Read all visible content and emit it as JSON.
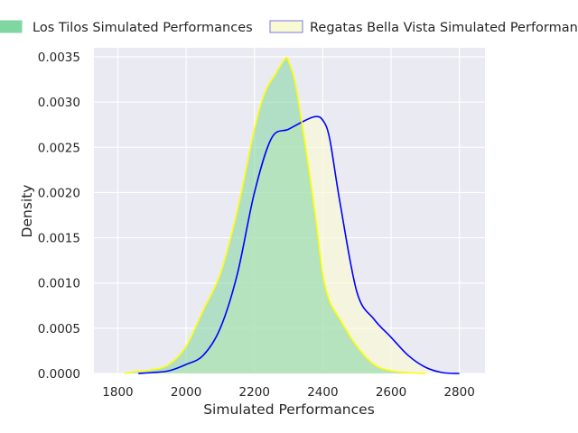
{
  "chart_data": {
    "type": "area",
    "title": "",
    "xlabel": "Simulated Performances",
    "ylabel": "Density",
    "xlim": [
      1730,
      2875
    ],
    "ylim": [
      0,
      0.0036
    ],
    "xticks": [
      1800,
      2000,
      2200,
      2400,
      2600,
      2800
    ],
    "xtick_labels": [
      "1800",
      "2000",
      "2200",
      "2400",
      "2600",
      "2800"
    ],
    "yticks": [
      0,
      0.0005,
      0.001,
      0.0015,
      0.002,
      0.0025,
      0.003,
      0.0035
    ],
    "ytick_labels": [
      "0.0000",
      "0.0005",
      "0.0010",
      "0.0015",
      "0.0020",
      "0.0025",
      "0.0030",
      "0.0035"
    ],
    "grid": true,
    "legend_position": "top",
    "series": [
      {
        "name": "Los Tilos Simulated Performances",
        "fill_color": "#7fd6a0",
        "line_color": "#ffff00",
        "x": [
          1820,
          1850,
          1900,
          1950,
          2000,
          2050,
          2100,
          2150,
          2200,
          2230,
          2260,
          2290,
          2300,
          2320,
          2350,
          2380,
          2400,
          2420,
          2450,
          2500,
          2550,
          2600,
          2650,
          2700
        ],
        "y": [
          0.0,
          2e-05,
          4e-05,
          0.0001,
          0.0003,
          0.0007,
          0.0011,
          0.0018,
          0.0027,
          0.0031,
          0.0033,
          0.00348,
          0.00345,
          0.0032,
          0.0025,
          0.0017,
          0.0011,
          0.0008,
          0.0006,
          0.0003,
          0.0001,
          3e-05,
          1e-05,
          0.0
        ]
      },
      {
        "name": "Regatas Bella Vista Simulated Performances",
        "fill_color": "#fafad2",
        "line_color": "#0000ff",
        "x": [
          1860,
          1900,
          1950,
          2000,
          2050,
          2100,
          2150,
          2200,
          2250,
          2300,
          2350,
          2380,
          2400,
          2420,
          2450,
          2500,
          2550,
          2600,
          2650,
          2700,
          2750,
          2800
        ],
        "y": [
          0.0,
          1e-05,
          3e-05,
          0.0001,
          0.0002,
          0.0005,
          0.0011,
          0.002,
          0.0026,
          0.0027,
          0.0028,
          0.00284,
          0.0028,
          0.0026,
          0.0019,
          0.0009,
          0.0006,
          0.0004,
          0.0002,
          7e-05,
          1e-05,
          0.0
        ]
      }
    ]
  }
}
